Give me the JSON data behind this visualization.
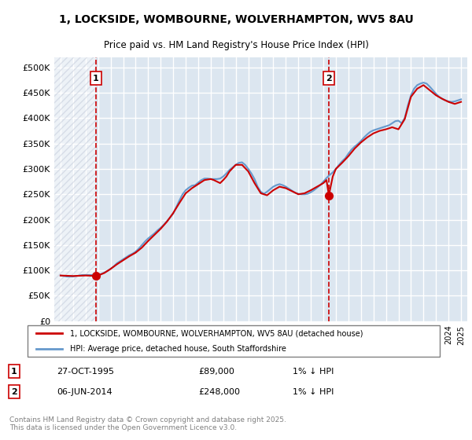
{
  "title": "1, LOCKSIDE, WOMBOURNE, WOLVERHAMPTON, WV5 8AU",
  "subtitle": "Price paid vs. HM Land Registry's House Price Index (HPI)",
  "ylabel_ticks": [
    "£0",
    "£50K",
    "£100K",
    "£150K",
    "£200K",
    "£250K",
    "£300K",
    "£350K",
    "£400K",
    "£450K",
    "£500K"
  ],
  "ytick_vals": [
    0,
    50000,
    100000,
    150000,
    200000,
    250000,
    300000,
    350000,
    400000,
    450000,
    500000
  ],
  "ylim": [
    0,
    520000
  ],
  "xlim_start": 1992.5,
  "xlim_end": 2025.5,
  "background_color": "#ffffff",
  "plot_bg_color": "#dce6f0",
  "hatch_color": "#c0c8d8",
  "grid_color": "#ffffff",
  "marker1_x": 1995.83,
  "marker1_y": 89000,
  "marker2_x": 2014.44,
  "marker2_y": 248000,
  "marker1_label": "1",
  "marker2_label": "2",
  "vline1_x": 1995.83,
  "vline2_x": 2014.44,
  "legend_line1": "1, LOCKSIDE, WOMBOURNE, WOLVERHAMPTON, WV5 8AU (detached house)",
  "legend_line2": "HPI: Average price, detached house, South Staffordshire",
  "annotation1_date": "27-OCT-1995",
  "annotation1_price": "£89,000",
  "annotation1_hpi": "1% ↓ HPI",
  "annotation2_date": "06-JUN-2014",
  "annotation2_price": "£248,000",
  "annotation2_hpi": "1% ↓ HPI",
  "copyright_text": "Contains HM Land Registry data © Crown copyright and database right 2025.\nThis data is licensed under the Open Government Licence v3.0.",
  "line_color_red": "#cc0000",
  "line_color_blue": "#6699cc",
  "hpi_data_x": [
    1993,
    1993.25,
    1993.5,
    1993.75,
    1994,
    1994.25,
    1994.5,
    1994.75,
    1995,
    1995.25,
    1995.5,
    1995.75,
    1996,
    1996.25,
    1996.5,
    1996.75,
    1997,
    1997.25,
    1997.5,
    1997.75,
    1998,
    1998.25,
    1998.5,
    1998.75,
    1999,
    1999.25,
    1999.5,
    1999.75,
    2000,
    2000.25,
    2000.5,
    2000.75,
    2001,
    2001.25,
    2001.5,
    2001.75,
    2002,
    2002.25,
    2002.5,
    2002.75,
    2003,
    2003.25,
    2003.5,
    2003.75,
    2004,
    2004.25,
    2004.5,
    2004.75,
    2005,
    2005.25,
    2005.5,
    2005.75,
    2006,
    2006.25,
    2006.5,
    2006.75,
    2007,
    2007.25,
    2007.5,
    2007.75,
    2008,
    2008.25,
    2008.5,
    2008.75,
    2009,
    2009.25,
    2009.5,
    2009.75,
    2010,
    2010.25,
    2010.5,
    2010.75,
    2011,
    2011.25,
    2011.5,
    2011.75,
    2012,
    2012.25,
    2012.5,
    2012.75,
    2013,
    2013.25,
    2013.5,
    2013.75,
    2014,
    2014.25,
    2014.5,
    2014.75,
    2015,
    2015.25,
    2015.5,
    2015.75,
    2016,
    2016.25,
    2016.5,
    2016.75,
    2017,
    2017.25,
    2017.5,
    2017.75,
    2018,
    2018.25,
    2018.5,
    2018.75,
    2019,
    2019.25,
    2019.5,
    2019.75,
    2020,
    2020.25,
    2020.5,
    2020.75,
    2021,
    2021.25,
    2021.5,
    2021.75,
    2022,
    2022.25,
    2022.5,
    2022.75,
    2023,
    2023.25,
    2023.5,
    2023.75,
    2024,
    2024.25,
    2024.5,
    2024.75,
    2025
  ],
  "hpi_data_y": [
    90000,
    89000,
    88000,
    88000,
    88000,
    89000,
    90000,
    91000,
    91000,
    91000,
    91000,
    90000,
    91000,
    93000,
    96000,
    99000,
    103000,
    108000,
    114000,
    118000,
    122000,
    126000,
    130000,
    133000,
    137000,
    143000,
    150000,
    157000,
    163000,
    168000,
    173000,
    179000,
    184000,
    190000,
    197000,
    204000,
    212000,
    225000,
    238000,
    250000,
    258000,
    263000,
    267000,
    268000,
    273000,
    278000,
    281000,
    281000,
    280000,
    280000,
    280000,
    281000,
    285000,
    291000,
    298000,
    303000,
    308000,
    312000,
    313000,
    308000,
    300000,
    291000,
    280000,
    265000,
    255000,
    251000,
    255000,
    260000,
    265000,
    268000,
    270000,
    268000,
    265000,
    261000,
    257000,
    253000,
    251000,
    250000,
    250000,
    251000,
    254000,
    258000,
    263000,
    268000,
    275000,
    282000,
    288000,
    293000,
    300000,
    308000,
    315000,
    321000,
    330000,
    338000,
    344000,
    349000,
    355000,
    362000,
    368000,
    373000,
    376000,
    378000,
    380000,
    382000,
    384000,
    386000,
    390000,
    394000,
    395000,
    390000,
    400000,
    425000,
    445000,
    458000,
    465000,
    468000,
    470000,
    468000,
    462000,
    455000,
    448000,
    442000,
    438000,
    435000,
    433000,
    432000,
    433000,
    435000,
    437000
  ],
  "price_data_x": [
    1993,
    1993.5,
    1994,
    1994.5,
    1995,
    1995.5,
    1995.83,
    1996,
    1996.5,
    1997,
    1997.5,
    1998,
    1998.5,
    1999,
    1999.5,
    2000,
    2000.5,
    2001,
    2001.5,
    2002,
    2002.5,
    2003,
    2003.5,
    2004,
    2004.5,
    2005,
    2005.25,
    2005.5,
    2005.75,
    2006,
    2006.25,
    2006.5,
    2007,
    2007.5,
    2008,
    2008.5,
    2009,
    2009.5,
    2010,
    2010.5,
    2011,
    2011.5,
    2012,
    2012.5,
    2013,
    2013.5,
    2014,
    2014.25,
    2014.44,
    2014.75,
    2015,
    2015.5,
    2016,
    2016.5,
    2017,
    2017.5,
    2018,
    2018.5,
    2019,
    2019.5,
    2020,
    2020.5,
    2021,
    2021.5,
    2022,
    2022.5,
    2023,
    2023.5,
    2024,
    2024.5,
    2025
  ],
  "price_data_y": [
    90000,
    89500,
    89000,
    89500,
    90000,
    89500,
    89000,
    90000,
    95000,
    103000,
    112000,
    120000,
    128000,
    135000,
    145000,
    158000,
    170000,
    182000,
    196000,
    213000,
    233000,
    252000,
    262000,
    270000,
    278000,
    280000,
    278000,
    275000,
    272000,
    278000,
    285000,
    295000,
    308000,
    308000,
    295000,
    272000,
    252000,
    248000,
    258000,
    265000,
    262000,
    256000,
    250000,
    252000,
    258000,
    265000,
    272000,
    278000,
    248000,
    285000,
    300000,
    312000,
    325000,
    340000,
    352000,
    362000,
    370000,
    375000,
    378000,
    382000,
    378000,
    398000,
    442000,
    458000,
    465000,
    455000,
    445000,
    438000,
    432000,
    428000,
    432000
  ]
}
